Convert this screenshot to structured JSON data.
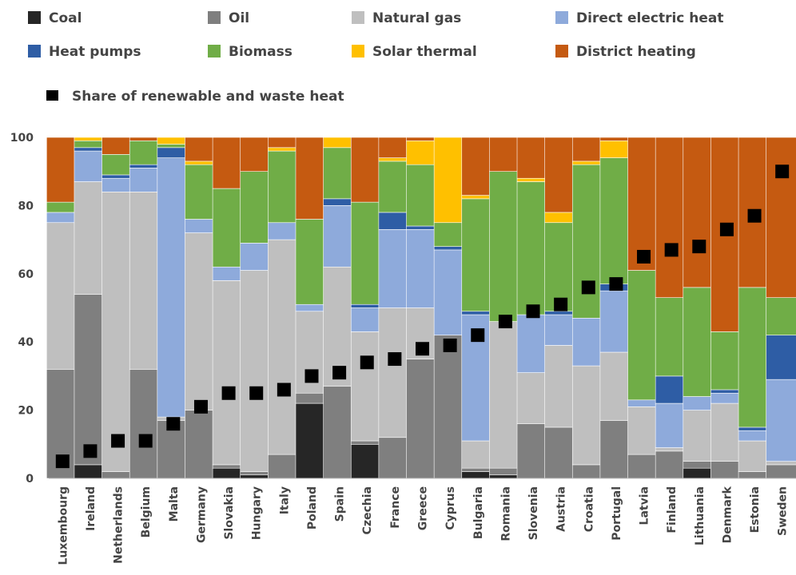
{
  "chart_data": {
    "type": "bar",
    "stacked": true,
    "ylim": [
      0,
      100
    ],
    "yticks": [
      0,
      20,
      40,
      60,
      80,
      100
    ],
    "grid": false,
    "legend_position": "top",
    "categories": [
      "Luxembourg",
      "Ireland",
      "Netherlands",
      "Belgium",
      "Malta",
      "Germany",
      "Slovakia",
      "Hungary",
      "Italy",
      "Poland",
      "Spain",
      "Czechia",
      "France",
      "Greece",
      "Cyprus",
      "Bulgaria",
      "Romania",
      "Slovenia",
      "Austria",
      "Croatia",
      "Portugal",
      "Latvia",
      "Finland",
      "Lithuania",
      "Denmark",
      "Estonia",
      "Sweden"
    ],
    "series": [
      {
        "name": "Coal",
        "color": "#262626",
        "values": [
          0,
          4,
          0,
          0,
          0,
          0,
          3,
          1,
          0,
          22,
          0,
          10,
          0,
          0,
          0,
          2,
          1,
          0,
          0,
          0,
          0,
          0,
          0,
          3,
          0,
          0,
          0
        ]
      },
      {
        "name": "Oil",
        "color": "#7f7f7f",
        "values": [
          32,
          50,
          2,
          32,
          17,
          20,
          1,
          1,
          7,
          3,
          27,
          1,
          12,
          35,
          42,
          1,
          2,
          16,
          15,
          4,
          17,
          7,
          8,
          2,
          5,
          2,
          4
        ]
      },
      {
        "name": "Natural gas",
        "color": "#bfbfbf",
        "values": [
          43,
          33,
          82,
          52,
          1,
          52,
          54,
          59,
          63,
          24,
          35,
          32,
          38,
          15,
          0,
          8,
          43,
          15,
          24,
          29,
          20,
          14,
          1,
          15,
          17,
          9,
          1
        ]
      },
      {
        "name": "Direct electric heat",
        "color": "#8eaadb",
        "values": [
          3,
          9,
          4,
          7,
          76,
          4,
          4,
          8,
          5,
          2,
          18,
          7,
          23,
          23,
          25,
          37,
          0,
          17,
          9,
          14,
          18,
          2,
          13,
          4,
          3,
          3,
          24
        ]
      },
      {
        "name": "Heat pumps",
        "color": "#2e5da5",
        "values": [
          0,
          1,
          1,
          1,
          3,
          0,
          0,
          0,
          0,
          0,
          2,
          1,
          5,
          1,
          1,
          1,
          0,
          0,
          1,
          0,
          2,
          0,
          8,
          0,
          1,
          1,
          13
        ]
      },
      {
        "name": "Biomass",
        "color": "#70ad47",
        "values": [
          3,
          2,
          6,
          7,
          1,
          16,
          23,
          21,
          21,
          25,
          15,
          30,
          15,
          18,
          7,
          33,
          44,
          39,
          26,
          45,
          37,
          38,
          23,
          32,
          17,
          41,
          11
        ]
      },
      {
        "name": "Solar thermal",
        "color": "#ffc000",
        "values": [
          0,
          1,
          0,
          0,
          2,
          1,
          0,
          0,
          1,
          0,
          3,
          0,
          1,
          7,
          25,
          1,
          0,
          1,
          3,
          1,
          5,
          0,
          0,
          0,
          0,
          0,
          0
        ]
      },
      {
        "name": "District heating",
        "color": "#c55a11",
        "values": [
          19,
          0,
          5,
          1,
          0,
          7,
          15,
          10,
          3,
          24,
          0,
          19,
          6,
          1,
          0,
          17,
          10,
          12,
          22,
          7,
          1,
          39,
          47,
          44,
          57,
          44,
          47
        ]
      }
    ],
    "markers": {
      "name": "Share of renewable and waste heat",
      "color": "#000000",
      "values": [
        5,
        8,
        11,
        11,
        16,
        21,
        25,
        25,
        26,
        30,
        31,
        34,
        35,
        38,
        39,
        42,
        46,
        49,
        51,
        56,
        57,
        65,
        67,
        68,
        73,
        77,
        90
      ]
    }
  }
}
